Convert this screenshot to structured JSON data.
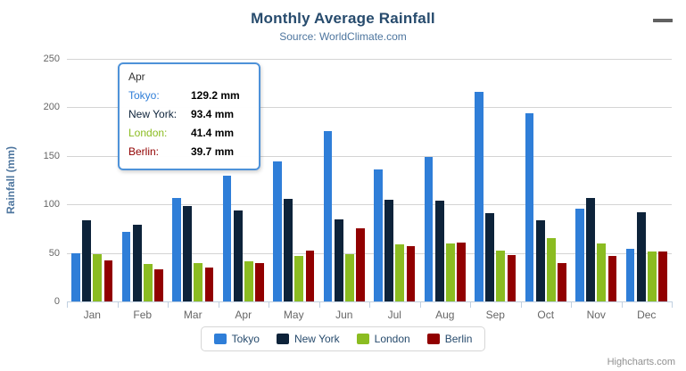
{
  "chart_data": {
    "type": "bar",
    "title": "Monthly Average Rainfall",
    "subtitle": "Source: WorldClimate.com",
    "xlabel": "",
    "ylabel": "Rainfall (mm)",
    "ylim": [
      0,
      250
    ],
    "ytick_step": 50,
    "yticks": [
      0,
      50,
      100,
      150,
      200,
      250
    ],
    "grid": true,
    "legend_position": "bottom",
    "categories": [
      "Jan",
      "Feb",
      "Mar",
      "Apr",
      "May",
      "Jun",
      "Jul",
      "Aug",
      "Sep",
      "Oct",
      "Nov",
      "Dec"
    ],
    "series": [
      {
        "name": "Tokyo",
        "color": "#2f7ed8",
        "values": [
          49.9,
          71.5,
          106.4,
          129.2,
          144.0,
          176.0,
          135.6,
          148.5,
          216.4,
          194.1,
          95.6,
          54.4
        ]
      },
      {
        "name": "New York",
        "color": "#0d233a",
        "values": [
          83.6,
          78.8,
          98.5,
          93.4,
          106.0,
          84.5,
          105.0,
          104.3,
          91.2,
          83.5,
          106.6,
          92.3
        ]
      },
      {
        "name": "London",
        "color": "#8bbc21",
        "values": [
          48.9,
          38.8,
          39.3,
          41.4,
          47.0,
          48.3,
          59.0,
          59.6,
          52.4,
          65.2,
          59.3,
          51.2
        ]
      },
      {
        "name": "Berlin",
        "color": "#910000",
        "values": [
          42.4,
          33.2,
          34.5,
          39.7,
          52.6,
          75.5,
          57.4,
          60.4,
          47.6,
          39.1,
          46.8,
          51.1
        ]
      }
    ]
  },
  "tooltip": {
    "header": "Apr",
    "rows": [
      {
        "name": "Tokyo:",
        "value": "129.2 mm"
      },
      {
        "name": "New York:",
        "value": "93.4 mm"
      },
      {
        "name": "London:",
        "value": "41.4 mm"
      },
      {
        "name": "Berlin:",
        "value": "39.7 mm"
      }
    ]
  },
  "colors": {
    "title": "#274b6d",
    "subtitle": "#4d759e",
    "axis_title": "#4d759e",
    "tick_label": "#666666",
    "gridline": "#d4d4d4",
    "axis_line": "#c0d0e0",
    "tooltip_border": "#4e92d9",
    "legend_text": "#274b6d"
  },
  "credits": {
    "label": "Highcharts.com"
  },
  "menu": {
    "icon": "hamburger-icon"
  }
}
